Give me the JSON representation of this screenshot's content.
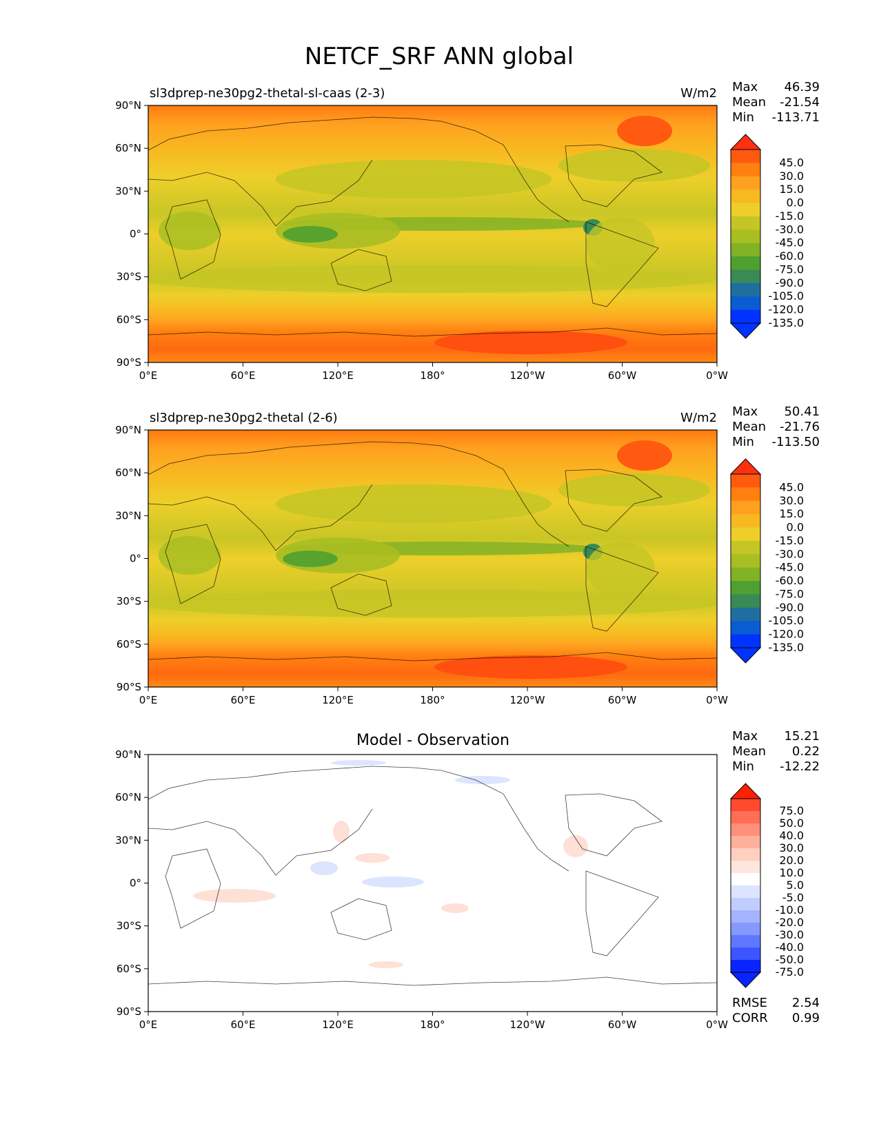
{
  "figure": {
    "title": "NETCF_SRF ANN global"
  },
  "chart_data": [
    {
      "type": "heatmap",
      "subtitle": "sl3dprep-ne30pg2-thetal-sl-caas (2-3)",
      "units": "W/m2",
      "stats": [
        {
          "label": "Max",
          "value": "46.39"
        },
        {
          "label": "Mean",
          "value": "-21.54"
        },
        {
          "label": "Min",
          "value": "-113.71"
        }
      ],
      "x_ticks": [
        "0°E",
        "60°E",
        "120°E",
        "180°",
        "120°W",
        "60°W",
        "0°W"
      ],
      "y_ticks": [
        "90°N",
        "60°N",
        "30°N",
        "0°",
        "30°S",
        "60°S",
        "90°S"
      ],
      "xlim": [
        0,
        360
      ],
      "ylim": [
        -90,
        90
      ],
      "colorbar": {
        "labels": [
          "45.0",
          "30.0",
          "15.0",
          "0.0",
          "-15.0",
          "-30.0",
          "-45.0",
          "-60.0",
          "-75.0",
          "-90.0",
          "-105.0",
          "-120.0",
          "-135.0"
        ],
        "colors": [
          "#ff3010",
          "#ff5a10",
          "#ff8010",
          "#ffa020",
          "#f8b820",
          "#eecf2a",
          "#c4c625",
          "#a8be22",
          "#82b226",
          "#4fa030",
          "#3a8a56",
          "#1f6ea0",
          "#0a5cd2",
          "#0033ff",
          "#0033ff"
        ]
      },
      "stats_bottom": []
    },
    {
      "type": "heatmap",
      "subtitle": "sl3dprep-ne30pg2-thetal (2-6)",
      "units": "W/m2",
      "stats": [
        {
          "label": "Max",
          "value": "50.41"
        },
        {
          "label": "Mean",
          "value": "-21.76"
        },
        {
          "label": "Min",
          "value": "-113.50"
        }
      ],
      "x_ticks": [
        "0°E",
        "60°E",
        "120°E",
        "180°",
        "120°W",
        "60°W",
        "0°W"
      ],
      "y_ticks": [
        "90°N",
        "60°N",
        "30°N",
        "0°",
        "30°S",
        "60°S",
        "90°S"
      ],
      "xlim": [
        0,
        360
      ],
      "ylim": [
        -90,
        90
      ],
      "colorbar": {
        "labels": [
          "45.0",
          "30.0",
          "15.0",
          "0.0",
          "-15.0",
          "-30.0",
          "-45.0",
          "-60.0",
          "-75.0",
          "-90.0",
          "-105.0",
          "-120.0",
          "-135.0"
        ],
        "colors": [
          "#ff3010",
          "#ff5a10",
          "#ff8010",
          "#ffa020",
          "#f8b820",
          "#eecf2a",
          "#c4c625",
          "#a8be22",
          "#82b226",
          "#4fa030",
          "#3a8a56",
          "#1f6ea0",
          "#0a5cd2",
          "#0033ff",
          "#0033ff"
        ]
      },
      "stats_bottom": []
    },
    {
      "type": "heatmap",
      "title": "Model - Observation",
      "stats": [
        {
          "label": "Max",
          "value": "15.21"
        },
        {
          "label": "Mean",
          "value": "0.22"
        },
        {
          "label": "Min",
          "value": "-12.22"
        }
      ],
      "x_ticks": [
        "0°E",
        "60°E",
        "120°E",
        "180°",
        "120°W",
        "60°W",
        "0°W"
      ],
      "y_ticks": [
        "90°N",
        "60°N",
        "30°N",
        "0°",
        "30°S",
        "60°S",
        "90°S"
      ],
      "xlim": [
        0,
        360
      ],
      "ylim": [
        -90,
        90
      ],
      "colorbar": {
        "labels": [
          "75.0",
          "50.0",
          "40.0",
          "30.0",
          "20.0",
          "10.0",
          "5.0",
          "-5.0",
          "-10.0",
          "-20.0",
          "-30.0",
          "-40.0",
          "-50.0",
          "-75.0"
        ],
        "colors": [
          "#ff2200",
          "#ff4a30",
          "#ff6e55",
          "#ff9078",
          "#ffb09c",
          "#ffcfc0",
          "#ffe6dc",
          "#ffffff",
          "#dde4ff",
          "#c2cdff",
          "#a5b4ff",
          "#8599ff",
          "#6078ff",
          "#3c55ff",
          "#0a24ff",
          "#0a24ff"
        ]
      },
      "stats_bottom": [
        {
          "label": "RMSE",
          "value": "2.54"
        },
        {
          "label": "CORR",
          "value": "0.99"
        }
      ]
    }
  ]
}
